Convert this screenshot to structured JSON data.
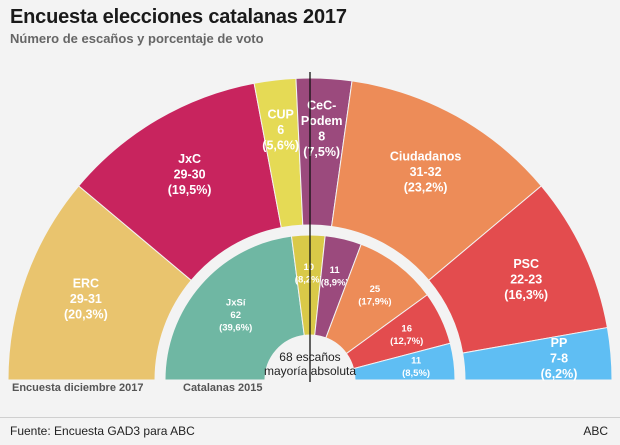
{
  "header": {
    "title": "Encuesta elecciones catalanas 2017",
    "subtitle": "Número de escaños y porcentaje de voto"
  },
  "footer": {
    "source": "Fuente: Encuesta GAD3 para ABC",
    "brand": "ABC"
  },
  "center": {
    "line1": "68 escaños",
    "line2": "mayoría absoluta"
  },
  "chart_data": [
    {
      "type": "pie",
      "title": "Encuesta diciembre 2017",
      "total_seats": 135,
      "majority": 68,
      "series": [
        {
          "party": "ERC",
          "seats": "29-31",
          "seats_mid": 30,
          "pct": "(20,3%)",
          "color": "#e9c46e"
        },
        {
          "party": "JxC",
          "seats": "29-30",
          "seats_mid": 29.5,
          "pct": "(19,5%)",
          "color": "#c8245e"
        },
        {
          "party": "CUP",
          "seats": "6",
          "seats_mid": 6,
          "pct": "(5,6%)",
          "color": "#e5da55"
        },
        {
          "party": "CeC-Podem",
          "seats": "8",
          "seats_mid": 8,
          "pct": "(7,5%)",
          "color": "#9b4a7d"
        },
        {
          "party": "Ciudadanos",
          "seats": "31-32",
          "seats_mid": 31.5,
          "pct": "(23,2%)",
          "color": "#ed8c58"
        },
        {
          "party": "PSC",
          "seats": "22-23",
          "seats_mid": 22.5,
          "pct": "(16,3%)",
          "color": "#e34c4e"
        },
        {
          "party": "PP",
          "seats": "7-8",
          "seats_mid": 7.5,
          "pct": "(6,2%)",
          "color": "#5fbef3"
        }
      ]
    },
    {
      "type": "pie",
      "title": "Catalanas 2015",
      "total_seats": 135,
      "series": [
        {
          "party": "JxSí",
          "seats": "62",
          "seats_mid": 62,
          "pct": "(39,6%)",
          "color": "#6fb7a3"
        },
        {
          "party": "CUP",
          "seats": "10",
          "seats_mid": 10,
          "pct": "(8,2%)",
          "color": "#d9c948"
        },
        {
          "party": "CeC-Podem",
          "seats": "11",
          "seats_mid": 11,
          "pct": "(8,9%)",
          "color": "#9b4a7d"
        },
        {
          "party": "Ciudadanos",
          "seats": "25",
          "seats_mid": 25,
          "pct": "(17,9%)",
          "color": "#ed8c58"
        },
        {
          "party": "PSC",
          "seats": "16",
          "seats_mid": 16,
          "pct": "(12,7%)",
          "color": "#e34c4e"
        },
        {
          "party": "PP",
          "seats": "11",
          "seats_mid": 11,
          "pct": "(8,5%)",
          "color": "#5fbef3"
        }
      ]
    }
  ]
}
